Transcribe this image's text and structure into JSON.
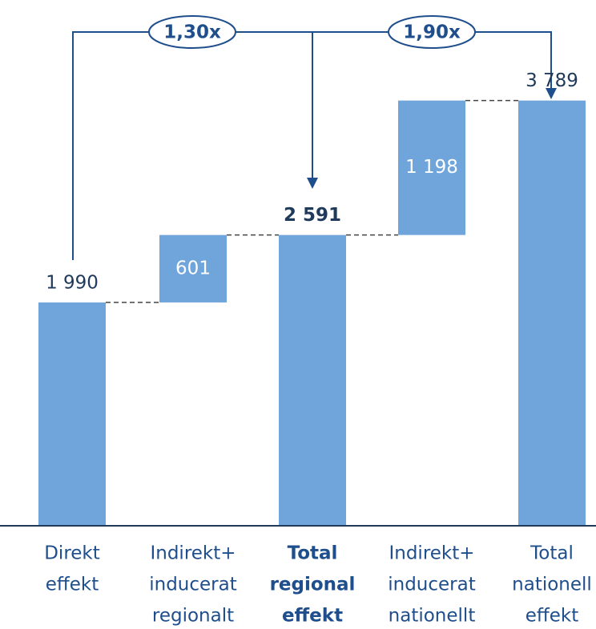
{
  "chart_data": {
    "type": "waterfall",
    "categories": [
      [
        "Direkt",
        "effekt"
      ],
      [
        "Indirekt+",
        "inducerat",
        "regionalt"
      ],
      [
        "Total",
        "regional",
        "effekt"
      ],
      [
        "Indirekt+",
        "inducerat",
        "nationellt"
      ],
      [
        "Total",
        "nationell",
        "effekt"
      ]
    ],
    "values": [
      1990,
      601,
      2591,
      1198,
      3789
    ],
    "value_labels": [
      "1 990",
      "601",
      "2 591",
      "1 198",
      "3 789"
    ],
    "measure": [
      "absolute",
      "relative",
      "total",
      "relative",
      "total"
    ],
    "bold_categories": [
      2
    ],
    "color": "#6fa5db",
    "ylim": [
      0,
      4200
    ],
    "annotations": [
      "1,30x",
      "1,90x"
    ]
  }
}
